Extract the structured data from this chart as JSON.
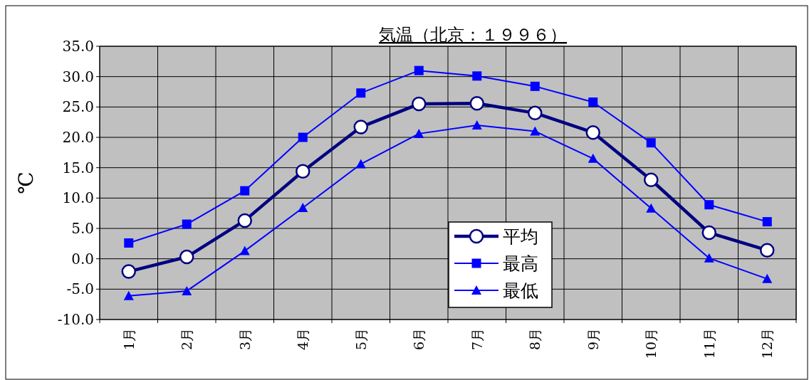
{
  "chart_data": {
    "type": "line",
    "title": "気温（北京：１９９６）",
    "ylabel": "℃",
    "categories": [
      "1月",
      "2月",
      "3月",
      "4月",
      "5月",
      "6月",
      "7月",
      "8月",
      "9月",
      "10月",
      "11月",
      "12月"
    ],
    "series": [
      {
        "name": "平均",
        "color": "#000080",
        "marker": "circle",
        "values": [
          -2.1,
          0.3,
          6.3,
          14.4,
          21.7,
          25.5,
          25.6,
          24.0,
          20.8,
          13.0,
          4.3,
          1.4
        ]
      },
      {
        "name": "最高",
        "color": "#0000ff",
        "marker": "square",
        "values": [
          2.6,
          5.7,
          11.2,
          20.0,
          27.3,
          31.0,
          30.1,
          28.4,
          25.8,
          19.1,
          8.9,
          6.1
        ]
      },
      {
        "name": "最低",
        "color": "#0000ff",
        "marker": "triangle",
        "values": [
          -6.1,
          -5.3,
          1.3,
          8.4,
          15.6,
          20.6,
          22.0,
          21.0,
          16.5,
          8.3,
          0.1,
          -3.3
        ]
      }
    ],
    "ylim": [
      -10,
      35
    ],
    "yticks": [
      {
        "value": 35,
        "label": "35.0"
      },
      {
        "value": 30,
        "label": "30.0"
      },
      {
        "value": 25,
        "label": "25.0"
      },
      {
        "value": 20,
        "label": "20.0"
      },
      {
        "value": 15,
        "label": "15.0"
      },
      {
        "value": 10,
        "label": "10.0"
      },
      {
        "value": 5,
        "label": "5.0"
      },
      {
        "value": 0,
        "label": "0.0"
      },
      {
        "value": -5,
        "label": "-5.0"
      },
      {
        "value": -10,
        "label": "-10.0"
      }
    ],
    "grid": true,
    "legend": "bottom"
  }
}
